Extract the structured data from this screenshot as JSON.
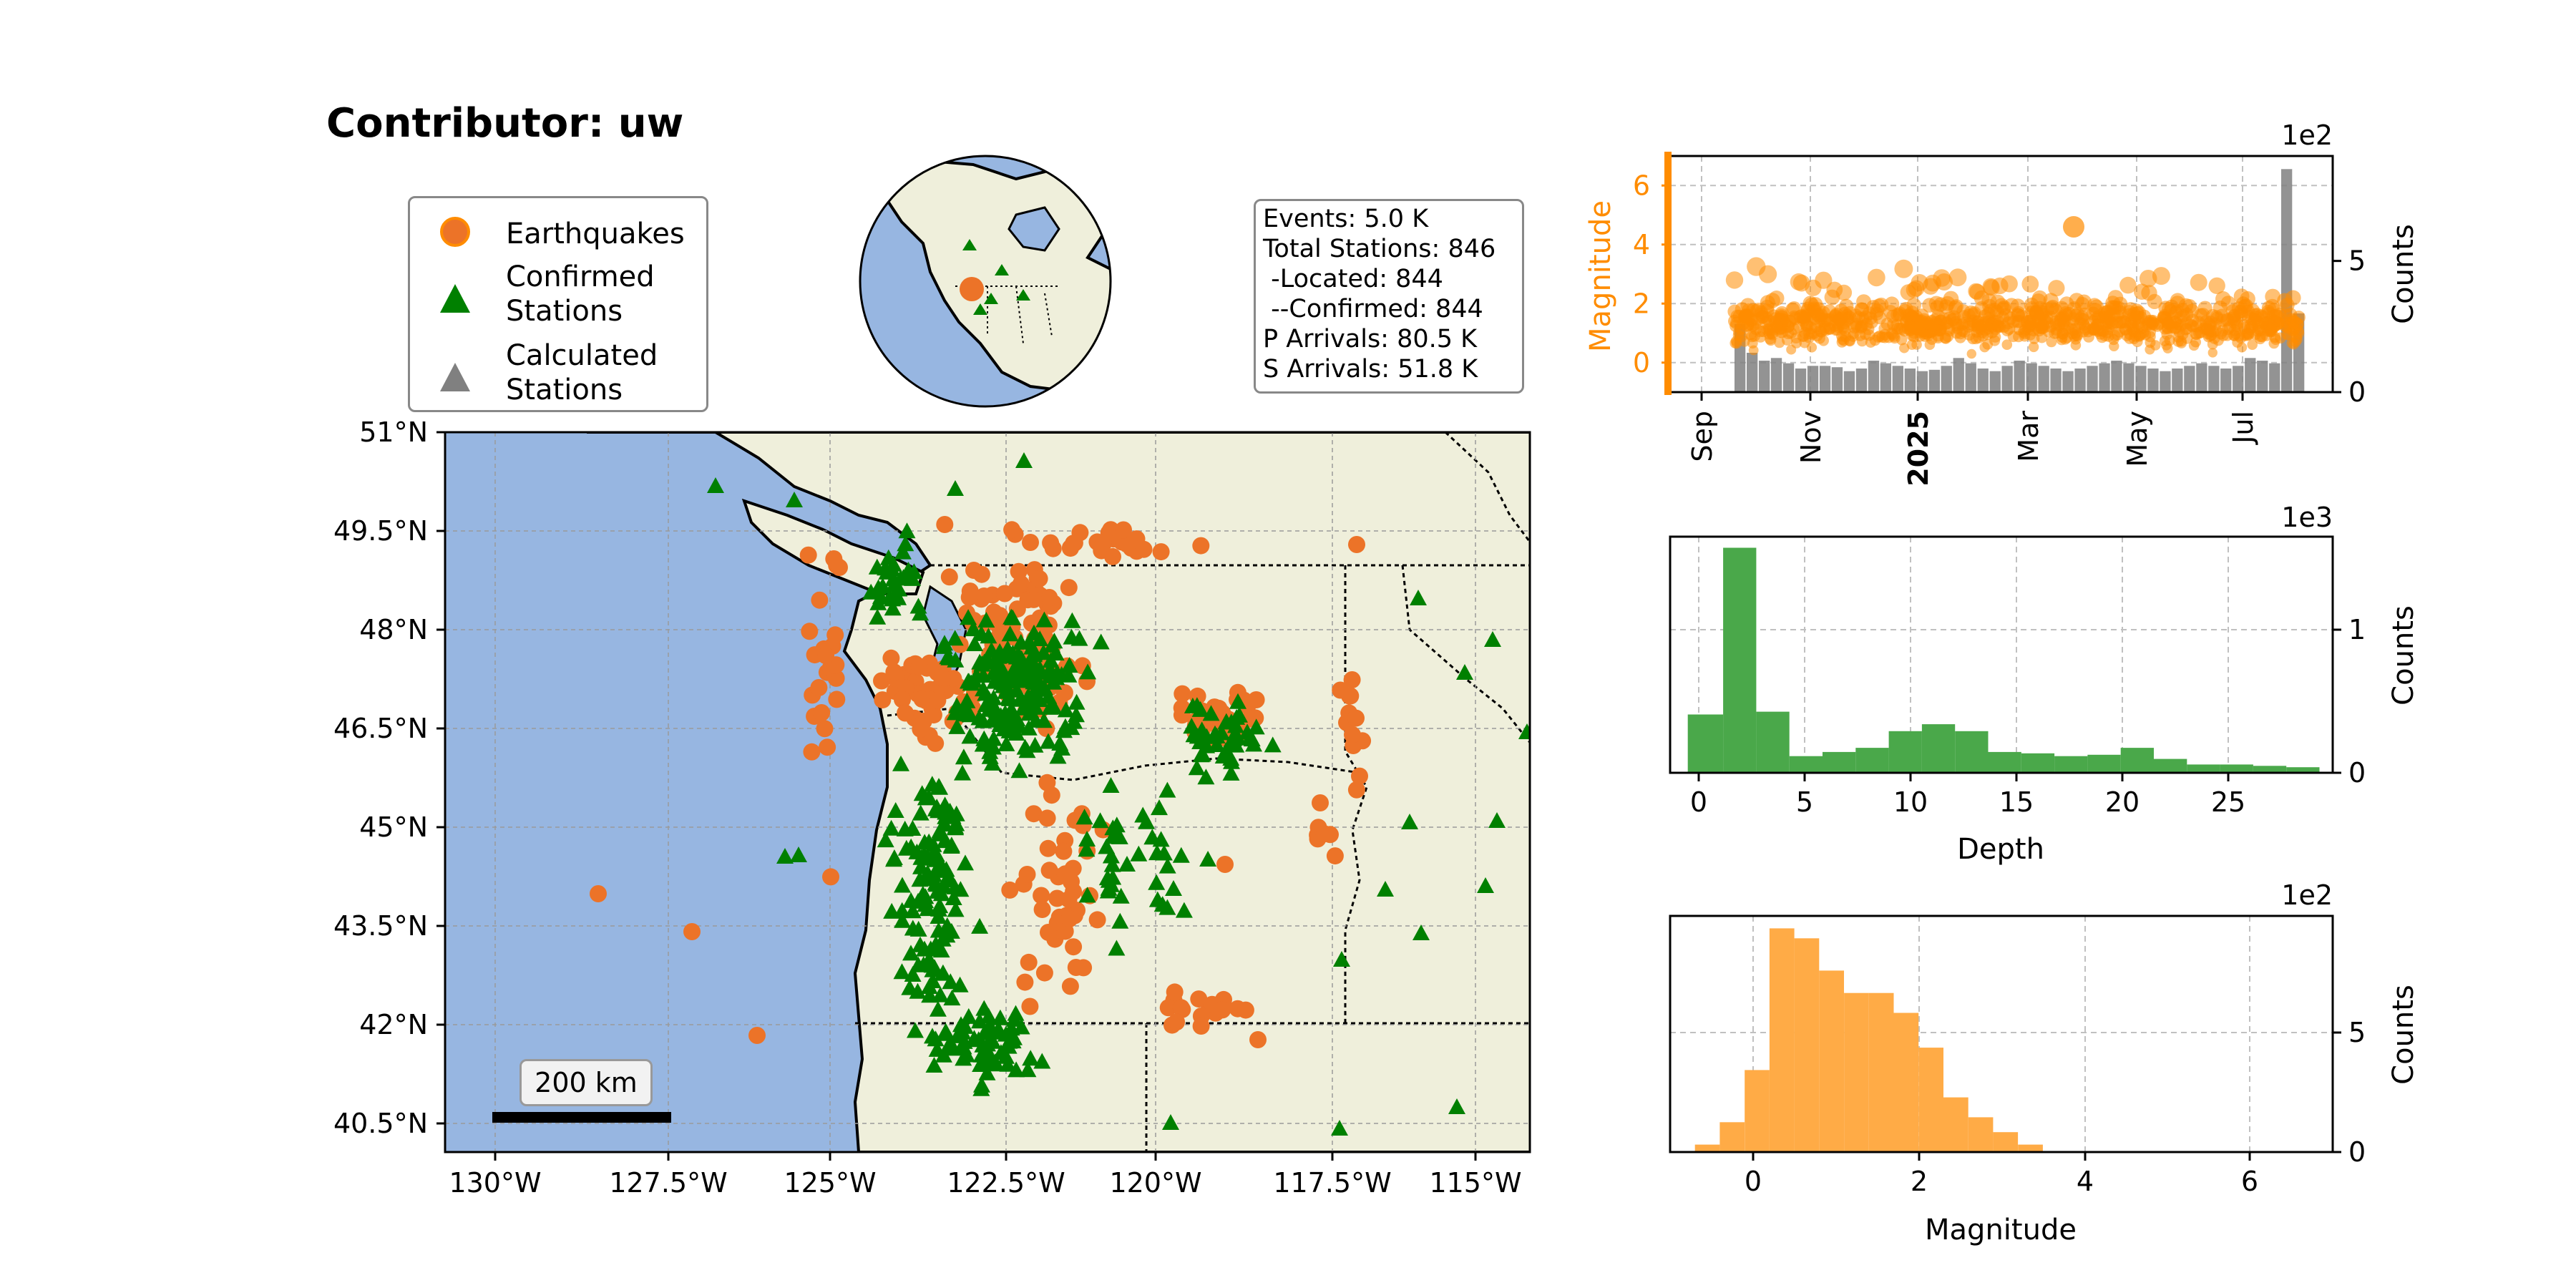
{
  "title": "Contributor: uw",
  "legend": {
    "items": [
      {
        "label": "Earthquakes",
        "icon": "circle-icon",
        "color": "#ec7328"
      },
      {
        "label": "Confirmed\nStations",
        "icon": "triangle-icon",
        "color": "#008000"
      },
      {
        "label": "Calculated\nStations",
        "icon": "triangle-icon",
        "color": "#808080"
      }
    ]
  },
  "stats": {
    "lines": [
      "Events: 5.0 K",
      "Total Stations: 846",
      " -Located: 844",
      " --Confirmed: 844",
      "P Arrivals: 80.5 K",
      "S Arrivals: 51.8 K"
    ]
  },
  "map": {
    "lon_ticks": [
      "130°W",
      "127.5°W",
      "125°W",
      "122.5°W",
      "120°W",
      "117.5°W",
      "115°W"
    ],
    "lat_ticks": [
      "51°N",
      "49.5°N",
      "48°N",
      "46.5°N",
      "45°N",
      "43.5°N",
      "42°N",
      "40.5°N"
    ],
    "extent": {
      "lon": [
        -130.7,
        -114.3
      ],
      "lat": [
        40.0,
        51.0
      ]
    },
    "scale_label": "200 km",
    "colors": {
      "ocean": "#97b6e1",
      "land": "#efefdb",
      "earthquake": "#ec7328",
      "station": "#008000"
    }
  },
  "chart_data": [
    {
      "type": "scatter",
      "title": "",
      "xlabel": "",
      "ylabel": "Magnitude",
      "ylabel_right": "Counts",
      "exponent_label": "1e2",
      "x_ticks": [
        "Sep",
        "Nov",
        "2025",
        "Mar",
        "May",
        "Jul"
      ],
      "x_range": [
        "2024-08-20",
        "2025-08-25"
      ],
      "ylim": [
        -1,
        7
      ],
      "y_ticks": [
        "6",
        "4",
        "2",
        "0"
      ],
      "y2lim": [
        0,
        900
      ],
      "y2_ticks": [
        "5",
        "0"
      ],
      "series": [
        {
          "kind": "scatter",
          "color": "#ff8c00",
          "x_range": [
            "2024-10-05",
            "2025-08-05"
          ],
          "y_range": [
            -0.5,
            4.6
          ]
        },
        {
          "kind": "bar",
          "color": "#808080",
          "values": [
            260,
            150,
            120,
            130,
            110,
            90,
            100,
            100,
            95,
            80,
            90,
            120,
            110,
            100,
            90,
            80,
            85,
            100,
            130,
            110,
            90,
            80,
            100,
            120,
            110,
            100,
            90,
            80,
            90,
            100,
            110,
            120,
            110,
            100,
            90,
            80,
            90,
            100,
            110,
            100,
            90,
            100,
            130,
            120,
            110,
            850,
            300
          ]
        }
      ]
    },
    {
      "type": "bar",
      "title": "",
      "xlabel": "Depth",
      "ylabel": "Counts",
      "exponent_label": "1e3",
      "color": "#4aa84a",
      "x_ticks": [
        "0",
        "5",
        "10",
        "15",
        "20",
        "25"
      ],
      "xlim": [
        -3,
        27
      ],
      "y_ticks": [
        "1",
        "0"
      ],
      "ylim": [
        0,
        1700
      ],
      "bin_edges": [
        -2.2,
        -0.6,
        0.9,
        2.4,
        3.9,
        5.4,
        6.9,
        8.4,
        9.9,
        11.4,
        12.9,
        14.4,
        15.9,
        17.4,
        18.9,
        20.4,
        21.9,
        23.4,
        24.9,
        26.4
      ],
      "values": [
        420,
        1620,
        440,
        120,
        150,
        180,
        300,
        350,
        300,
        150,
        140,
        120,
        130,
        180,
        100,
        60,
        60,
        50,
        40
      ]
    },
    {
      "type": "bar",
      "title": "",
      "xlabel": "Magnitude",
      "ylabel": "Counts",
      "exponent_label": "1e2",
      "color": "#ffab46",
      "x_ticks": [
        "0",
        "2",
        "4",
        "6"
      ],
      "xlim": [
        -1,
        7
      ],
      "y_ticks": [
        "5",
        "0"
      ],
      "ylim": [
        0,
        950
      ],
      "bin_edges": [
        -0.7,
        -0.4,
        -0.1,
        0.2,
        0.5,
        0.8,
        1.1,
        1.4,
        1.7,
        2.0,
        2.3,
        2.6,
        2.9,
        3.2,
        3.5
      ],
      "values": [
        30,
        120,
        330,
        900,
        860,
        730,
        640,
        640,
        560,
        420,
        220,
        140,
        80,
        30
      ]
    }
  ]
}
